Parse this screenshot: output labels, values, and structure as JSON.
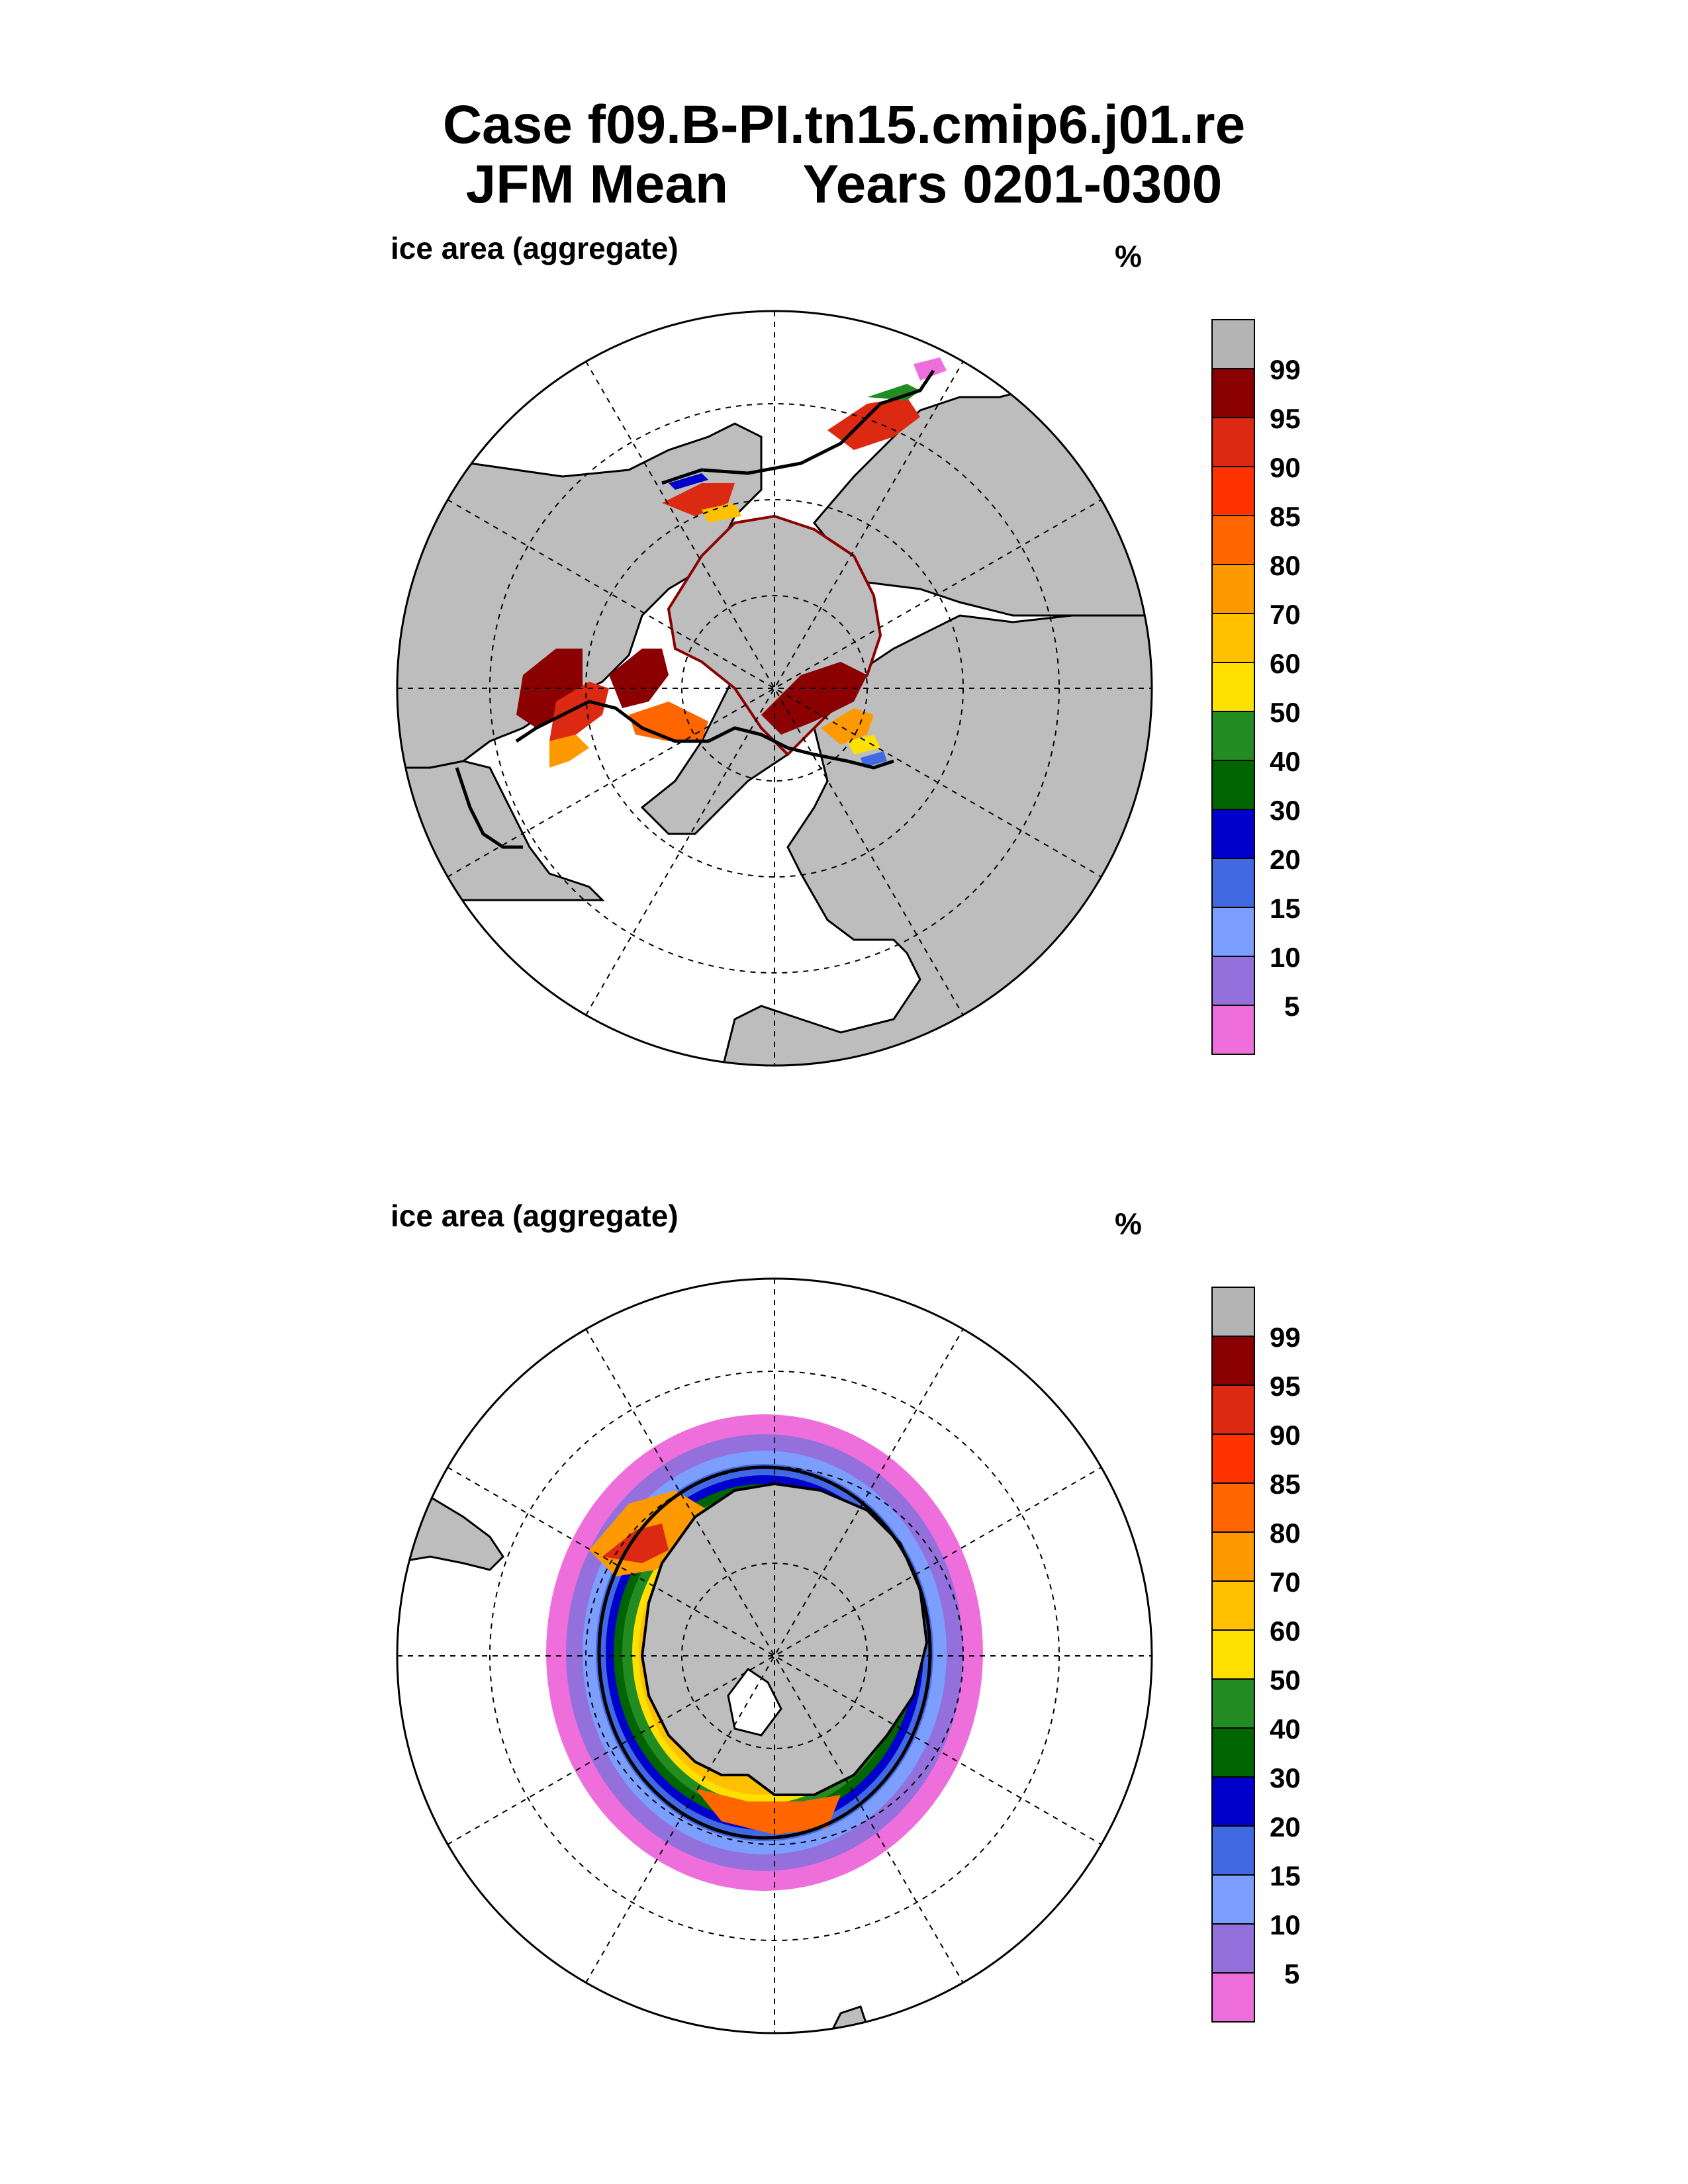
{
  "title": {
    "line1": "Case f09.B-PI.tn15.cmip6.j01.re",
    "line2": "JFM Mean     Years 0201-0300"
  },
  "panels": [
    {
      "id": "north",
      "hemisphere": "north",
      "variable_label": "ice area  (aggregate)",
      "units": "%"
    },
    {
      "id": "south",
      "hemisphere": "south",
      "variable_label": "ice area  (aggregate)",
      "units": "%"
    }
  ],
  "colorbar": {
    "levels": [
      "99",
      "95",
      "90",
      "85",
      "80",
      "70",
      "60",
      "50",
      "40",
      "30",
      "20",
      "15",
      "10",
      "5"
    ],
    "colors": [
      "#b4b4b4",
      "#8b0000",
      "#dc2a12",
      "#ff3300",
      "#ff6600",
      "#ff9900",
      "#ffc000",
      "#ffe000",
      "#228b22",
      "#006400",
      "#0000cd",
      "#4169e1",
      "#7b9eff",
      "#9370db",
      "#ee6fdc"
    ]
  },
  "styles": {
    "land_color": "#bdbdbd",
    "ocean_color": "#ffffff",
    "grid_style": "dashed",
    "ice_edge_color": "#000000"
  }
}
